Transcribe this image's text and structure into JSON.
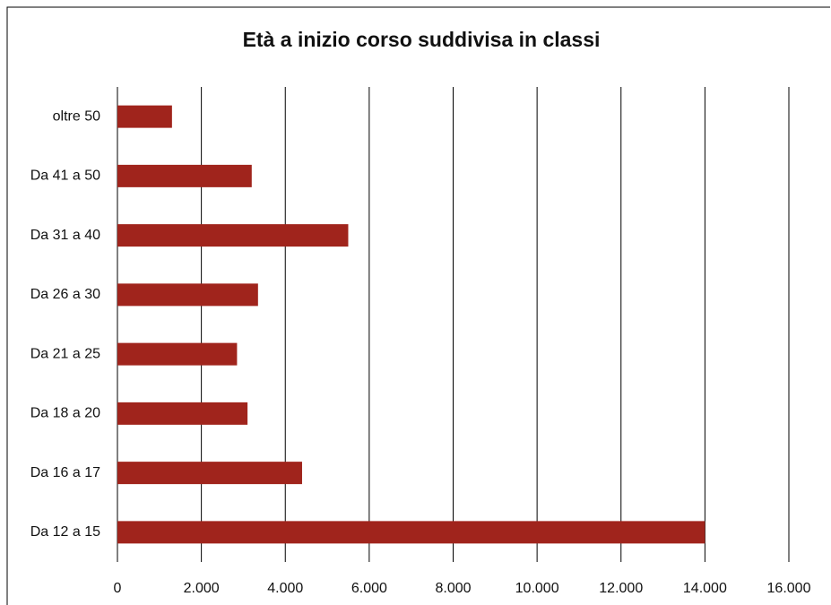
{
  "chart_data": {
    "type": "bar",
    "orientation": "horizontal",
    "title": "Età a inizio corso suddivisa in classi",
    "categories": [
      "oltre 50",
      "Da 41 a 50",
      "Da 31 a 40",
      "Da 26 a 30",
      "Da 21 a 25",
      "Da 18 a 20",
      "Da 16 a 17",
      "Da 12 a 15"
    ],
    "values": [
      1300,
      3200,
      5500,
      3350,
      2850,
      3100,
      4400,
      14000
    ],
    "color": "#a0241c",
    "xlim": [
      0,
      16000
    ],
    "xticks": [
      0,
      {
        "value": 2000,
        "label": "2.000"
      },
      {
        "value": 4000,
        "label": "4.000"
      },
      {
        "value": 6000,
        "label": "6.000"
      },
      {
        "value": 8000,
        "label": "8.000"
      },
      {
        "value": 10000,
        "label": "10.000"
      },
      {
        "value": 12000,
        "label": "12.000"
      },
      {
        "value": 14000,
        "label": "14.000"
      },
      {
        "value": 16000,
        "label": "16.000"
      }
    ],
    "grid": true
  }
}
